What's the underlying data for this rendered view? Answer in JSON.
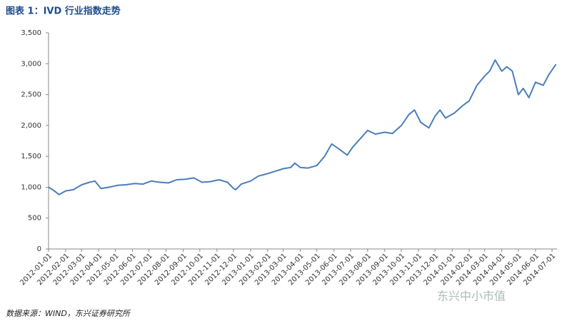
{
  "chart_data": {
    "type": "line",
    "title": "图表 1：IVD 行业指数走势",
    "source": "数据来源：WIND，东兴证券研究所",
    "watermark": "东兴中小市值",
    "x": [
      "2012-01-01",
      "2012-01-10",
      "2012-01-20",
      "2012-02-01",
      "2012-02-15",
      "2012-03-01",
      "2012-03-15",
      "2012-03-25",
      "2012-04-05",
      "2012-04-20",
      "2012-05-05",
      "2012-05-20",
      "2012-06-05",
      "2012-06-20",
      "2012-07-05",
      "2012-07-20",
      "2012-08-05",
      "2012-08-20",
      "2012-09-05",
      "2012-09-20",
      "2012-10-05",
      "2012-10-20",
      "2012-11-05",
      "2012-11-20",
      "2012-12-01",
      "2012-12-05",
      "2012-12-15",
      "2013-01-01",
      "2013-01-15",
      "2013-02-01",
      "2013-02-15",
      "2013-03-01",
      "2013-03-15",
      "2013-03-22",
      "2013-04-01",
      "2013-04-15",
      "2013-05-01",
      "2013-05-15",
      "2013-05-28",
      "2013-06-10",
      "2013-06-25",
      "2013-07-05",
      "2013-07-20",
      "2013-08-01",
      "2013-08-15",
      "2013-09-01",
      "2013-09-15",
      "2013-10-01",
      "2013-10-15",
      "2013-10-25",
      "2013-11-05",
      "2013-11-20",
      "2013-12-01",
      "2013-12-10",
      "2013-12-20",
      "2014-01-05",
      "2014-01-20",
      "2014-02-01",
      "2014-02-15",
      "2014-03-01",
      "2014-03-10",
      "2014-03-20",
      "2014-04-01",
      "2014-04-10",
      "2014-04-20",
      "2014-05-01",
      "2014-05-10",
      "2014-05-20",
      "2014-06-01",
      "2014-06-15",
      "2014-06-25",
      "2014-07-08"
    ],
    "series": [
      {
        "name": "IVD",
        "color": "#4a7ebb",
        "values": [
          1000,
          950,
          880,
          940,
          960,
          1040,
          1080,
          1100,
          980,
          1000,
          1030,
          1040,
          1060,
          1050,
          1100,
          1080,
          1070,
          1120,
          1130,
          1150,
          1080,
          1090,
          1120,
          1080,
          980,
          960,
          1050,
          1100,
          1180,
          1220,
          1260,
          1300,
          1320,
          1390,
          1320,
          1310,
          1350,
          1500,
          1700,
          1620,
          1520,
          1650,
          1800,
          1920,
          1860,
          1890,
          1870,
          2000,
          2180,
          2250,
          2050,
          1960,
          2150,
          2250,
          2120,
          2200,
          2320,
          2400,
          2650,
          2800,
          2880,
          3060,
          2880,
          2950,
          2880,
          2500,
          2600,
          2450,
          2700,
          2650,
          2820,
          2990
        ]
      }
    ],
    "xlim": [
      "2012-01-01",
      "2014-07-10"
    ],
    "xticks": [
      "2012-01-01",
      "2012-02-01",
      "2012-03-01",
      "2012-04-01",
      "2012-05-01",
      "2012-06-01",
      "2012-07-01",
      "2012-08-01",
      "2012-09-01",
      "2012-10-01",
      "2012-11-01",
      "2012-12-01",
      "2013-01-01",
      "2013-02-01",
      "2013-03-01",
      "2013-04-01",
      "2013-05-01",
      "2013-06-01",
      "2013-07-01",
      "2013-08-01",
      "2013-09-01",
      "2013-10-01",
      "2013-11-01",
      "2013-12-01",
      "2014-01-01",
      "2014-02-01",
      "2014-03-01",
      "2014-04-01",
      "2014-05-01",
      "2014-06-01",
      "2014-07-01"
    ],
    "ylim": [
      0,
      3500
    ],
    "yticks": [
      0,
      500,
      {
        "value": 1000,
        "label": "1,000"
      },
      {
        "value": 1500,
        "label": "1,500"
      },
      {
        "value": 2000,
        "label": "2,000"
      },
      {
        "value": 2500,
        "label": "2,500"
      },
      {
        "value": 3000,
        "label": "3,000"
      },
      {
        "value": 3500,
        "label": "3,500"
      }
    ],
    "grid": false
  }
}
